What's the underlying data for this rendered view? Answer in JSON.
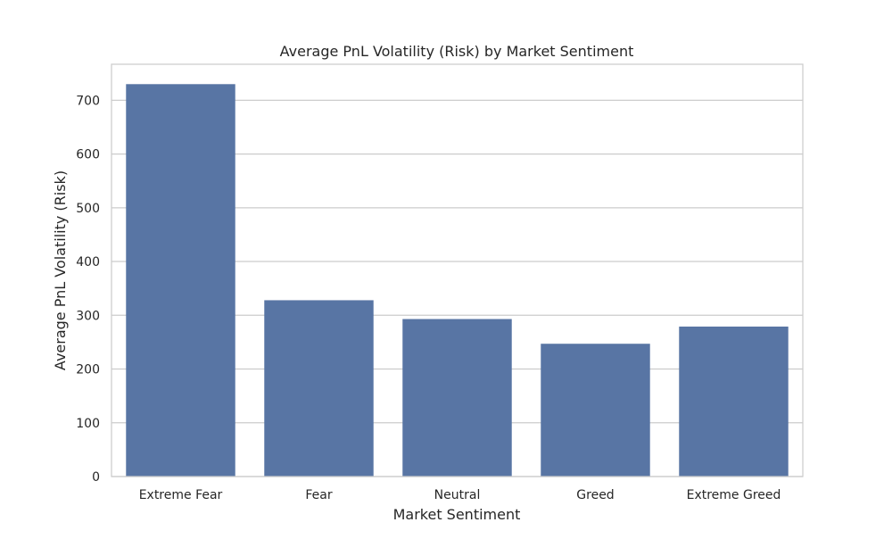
{
  "chart_data": {
    "type": "bar",
    "title": "Average PnL Volatility (Risk) by Market Sentiment",
    "xlabel": "Market Sentiment",
    "ylabel": "Average PnL Volatility (Risk)",
    "categories": [
      "Extreme Fear",
      "Fear",
      "Neutral",
      "Greed",
      "Extreme Greed"
    ],
    "values": [
      730,
      328,
      293,
      247,
      279
    ],
    "ylim": [
      0,
      767
    ],
    "yticks": [
      0,
      100,
      200,
      300,
      400,
      500,
      600,
      700
    ],
    "grid": "horizontal",
    "bar_color": "#5875a4",
    "grid_color": "#cccccc",
    "frame_color": "#cccccc"
  }
}
